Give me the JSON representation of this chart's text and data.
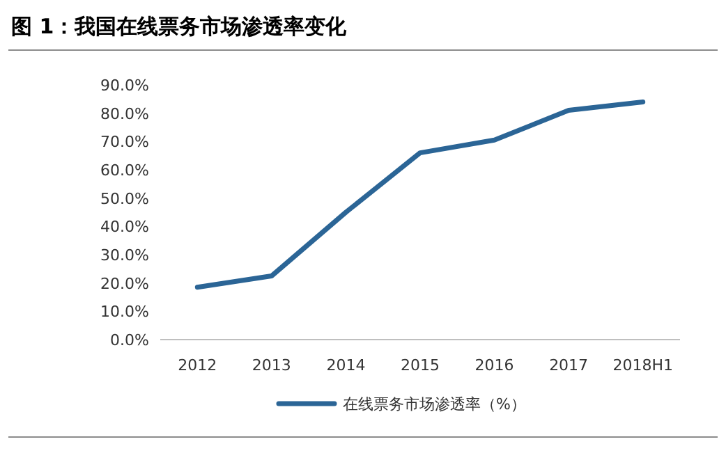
{
  "chart_data": {
    "type": "line",
    "title": "图 1：我国在线票务市场渗透率变化",
    "categories": [
      "2012",
      "2013",
      "2014",
      "2015",
      "2016",
      "2017",
      "2018H1"
    ],
    "series": [
      {
        "name": "在线票务市场渗透率（%）",
        "color": "#2b6596",
        "values": [
          18.5,
          22.5,
          45,
          66,
          70.5,
          81,
          84
        ]
      }
    ],
    "ylim": [
      0,
      90
    ],
    "yticks": [
      {
        "value": 0,
        "label": "0.0%"
      },
      {
        "value": 10,
        "label": "10.0%"
      },
      {
        "value": 20,
        "label": "20.0%"
      },
      {
        "value": 30,
        "label": "30.0%"
      },
      {
        "value": 40,
        "label": "40.0%"
      },
      {
        "value": 50,
        "label": "50.0%"
      },
      {
        "value": 60,
        "label": "60.0%"
      },
      {
        "value": 70,
        "label": "70.0%"
      },
      {
        "value": 80,
        "label": "80.0%"
      },
      {
        "value": 90,
        "label": "90.0%"
      }
    ],
    "legend": "bottom"
  }
}
